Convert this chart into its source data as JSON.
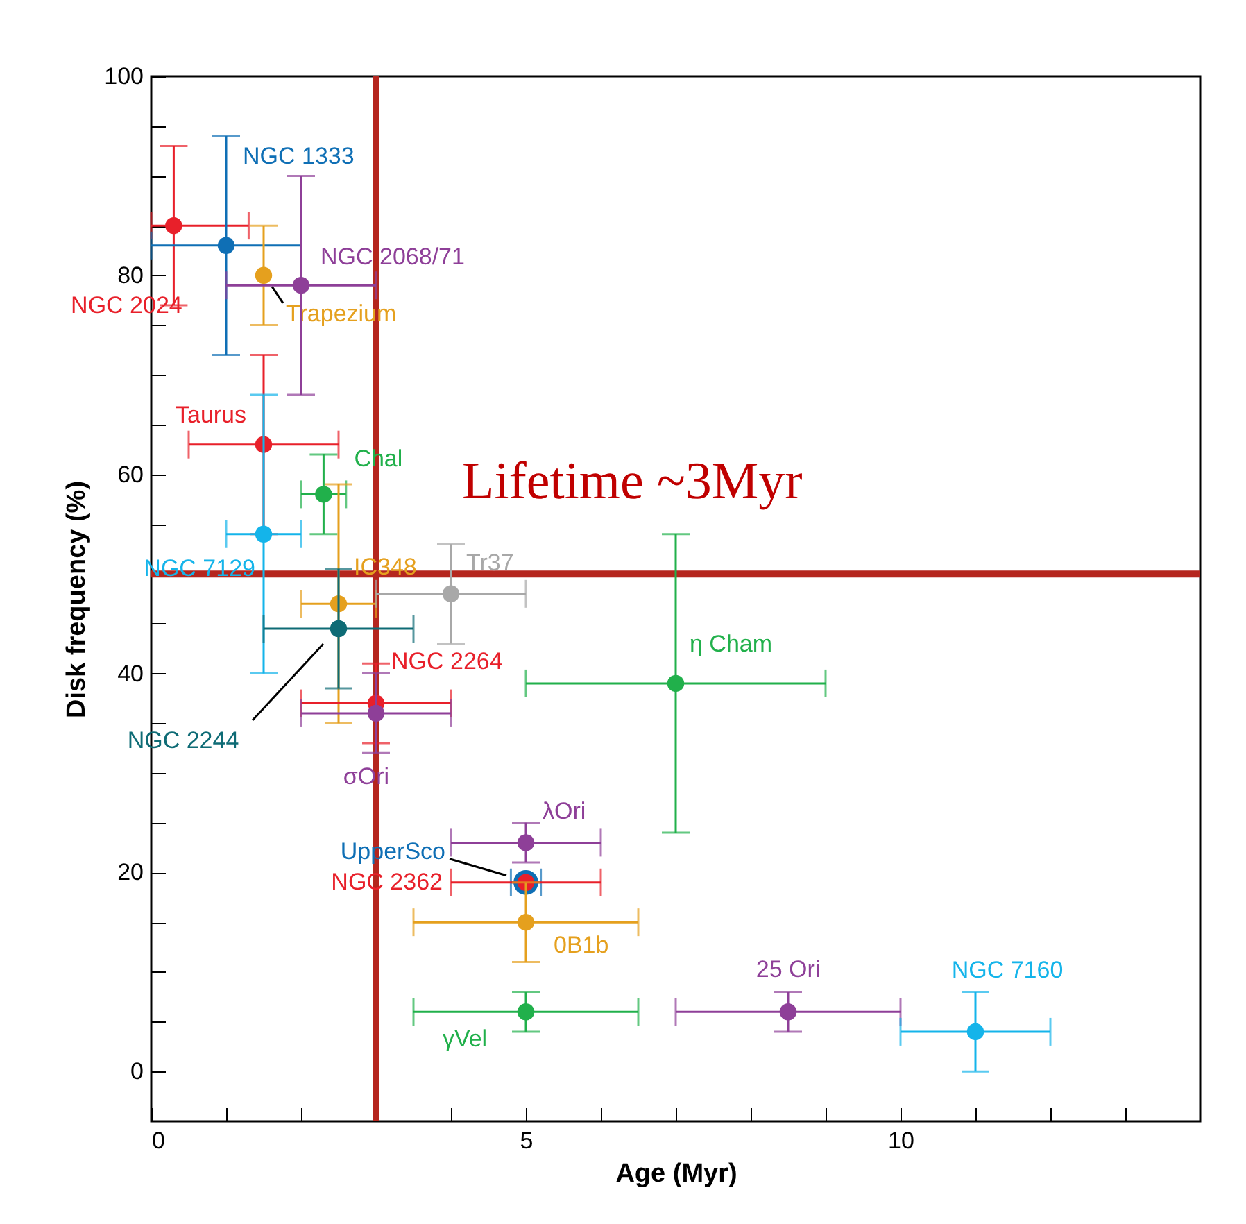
{
  "chart_data": {
    "type": "scatter",
    "xlabel": "Age (Myr)",
    "ylabel": "Disk frequency (%)",
    "xlim": [
      0,
      14
    ],
    "ylim": [
      -5,
      100
    ],
    "xticks": [
      0,
      {
        "value": 1,
        "label": null
      },
      {
        "value": 2,
        "label": null
      },
      {
        "value": 3,
        "label": null
      },
      {
        "value": 4,
        "label": null
      },
      5,
      {
        "value": 6,
        "label": null
      },
      {
        "value": 7,
        "label": null
      },
      {
        "value": 8,
        "label": null
      },
      {
        "value": 9,
        "label": null
      },
      10,
      {
        "value": 11,
        "label": null
      },
      {
        "value": 12,
        "label": null
      },
      {
        "value": 13,
        "label": null
      }
    ],
    "yticks": [
      0,
      {
        "value": 5,
        "label": null
      },
      {
        "value": 10,
        "label": null
      },
      {
        "value": 15,
        "label": null
      },
      20,
      {
        "value": 25,
        "label": null
      },
      {
        "value": 30,
        "label": null
      },
      {
        "value": 35,
        "label": null
      },
      40,
      {
        "value": 45,
        "label": null
      },
      {
        "value": 50,
        "label": null
      },
      {
        "value": 55,
        "label": null
      },
      60,
      {
        "value": 65,
        "label": null
      },
      {
        "value": 70,
        "label": null
      },
      {
        "value": 75,
        "label": null
      },
      80,
      {
        "value": 85,
        "label": null
      },
      {
        "value": 90,
        "label": null
      },
      {
        "value": 95,
        "label": null
      },
      100
    ],
    "grid": false,
    "marker": "circle",
    "ref_lines": [
      {
        "axis": "x",
        "value": 3,
        "color": "#b5261e"
      },
      {
        "axis": "y",
        "value": 50,
        "color": "#b5261e"
      }
    ],
    "annotations": [
      "Lifetime ~3Myr"
    ],
    "series": [
      {
        "name": "NGC 2024",
        "color": "#e8202a",
        "x": [
          0.3
        ],
        "values": [
          85
        ],
        "xerrors": [
          [
            0,
            1.3
          ]
        ],
        "errors": [
          [
            77,
            93
          ]
        ]
      },
      {
        "name": "NGC 1333",
        "color": "#0f6fb5",
        "x": [
          1
        ],
        "values": [
          83
        ],
        "xerrors": [
          [
            0,
            2
          ]
        ],
        "errors": [
          [
            72,
            94
          ]
        ]
      },
      {
        "name": "Trapezium",
        "color": "#e5a01e",
        "x": [
          1.5
        ],
        "values": [
          80
        ],
        "errors": [
          [
            75,
            85
          ]
        ]
      },
      {
        "name": "NGC 2068/71",
        "color": "#8e3f98",
        "x": [
          2
        ],
        "values": [
          79
        ],
        "xerrors": [
          1
        ],
        "errors": [
          [
            68,
            90
          ]
        ]
      },
      {
        "name": "Taurus",
        "color": "#e8202a",
        "x": [
          1.5
        ],
        "values": [
          63
        ],
        "xerrors": [
          1
        ],
        "errors": [
          9
        ]
      },
      {
        "name": "Chal",
        "color": "#21b04b",
        "x": [
          2.3
        ],
        "values": [
          58
        ],
        "xerrors": [
          [
            2,
            2.6
          ]
        ],
        "errors": [
          4
        ]
      },
      {
        "name": "NGC 7129",
        "color": "#14b4ea",
        "x": [
          1.5
        ],
        "values": [
          54
        ],
        "xerrors": [
          0.5
        ],
        "errors": [
          [
            40,
            68
          ]
        ]
      },
      {
        "name": "IC348",
        "color": "#e5a01e",
        "x": [
          2.5
        ],
        "values": [
          47
        ],
        "xerrors": [
          0.5
        ],
        "errors": [
          [
            35,
            59
          ]
        ]
      },
      {
        "name": "Tr37",
        "color": "#a8a8a8",
        "x": [
          4
        ],
        "values": [
          48
        ],
        "xerrors": [
          1
        ],
        "errors": [
          5
        ]
      },
      {
        "name": "NGC 2244",
        "color": "#0e6b75",
        "x": [
          2.5
        ],
        "values": [
          44.5
        ],
        "xerrors": [
          1
        ],
        "errors": [
          6
        ]
      },
      {
        "name": "NGC 2264",
        "color": "#e8202a",
        "x": [
          3
        ],
        "values": [
          37
        ],
        "xerrors": [
          1
        ],
        "errors": [
          4
        ]
      },
      {
        "name": "σOri",
        "color": "#8e3f98",
        "x": [
          3
        ],
        "values": [
          36
        ],
        "xerrors": [
          1
        ],
        "errors": [
          4
        ]
      },
      {
        "name": "λOri",
        "color": "#8e3f98",
        "x": [
          5
        ],
        "values": [
          23
        ],
        "xerrors": [
          1
        ],
        "errors": [
          2
        ]
      },
      {
        "name": "UpperSco",
        "color": "#0f6fb5",
        "x": [
          5
        ],
        "values": [
          19
        ],
        "xerrors": [
          0.2
        ]
      },
      {
        "name": "NGC 2362",
        "color": "#e8202a",
        "x": [
          5
        ],
        "values": [
          19
        ],
        "xerrors": [
          1
        ]
      },
      {
        "name": "0B1b",
        "color": "#e5a01e",
        "x": [
          5
        ],
        "values": [
          15
        ],
        "xerrors": [
          1.5
        ],
        "errors": [
          4
        ]
      },
      {
        "name": "γVel",
        "color": "#21b04b",
        "x": [
          5
        ],
        "values": [
          6
        ],
        "xerrors": [
          1.5
        ],
        "errors": [
          2
        ]
      },
      {
        "name": "25 Ori",
        "color": "#8e3f98",
        "x": [
          8.5
        ],
        "values": [
          6
        ],
        "xerrors": [
          [
            7,
            10
          ]
        ],
        "errors": [
          2
        ]
      },
      {
        "name": "NGC 7160",
        "color": "#14b4ea",
        "x": [
          11
        ],
        "values": [
          4
        ],
        "xerrors": [
          1
        ],
        "errors": [
          4
        ]
      },
      {
        "name": "η Cham",
        "color": "#21b04b",
        "x": [
          7
        ],
        "values": [
          39
        ],
        "xerrors": [
          2
        ],
        "errors": [
          15
        ]
      }
    ]
  }
}
